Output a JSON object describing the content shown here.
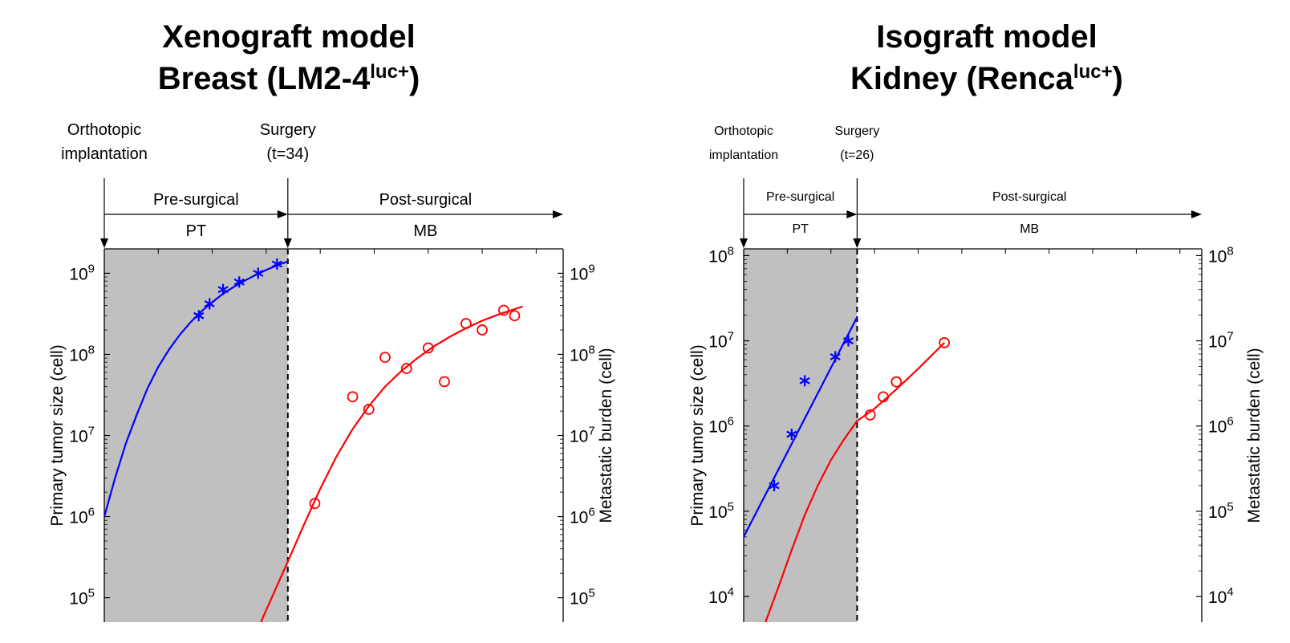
{
  "chart_data": [
    {
      "type": "scatter",
      "title_line1": "Xenograft model",
      "title_line2_base": "Breast (LM2-4",
      "title_line2_sup": "luc+",
      "title_line2_end": ")",
      "ylabel_left": "Primary tumor size (cell)",
      "ylabel_right": "Metastatic burden (cell)",
      "yscale": "log",
      "ylim": [
        50000,
        2000000000
      ],
      "xlim": [
        0,
        85
      ],
      "surgery_time": 34,
      "y_ticks": [
        {
          "exp": 5,
          "label": "10",
          "sup": "5"
        },
        {
          "exp": 6,
          "label": "10",
          "sup": "6"
        },
        {
          "exp": 7,
          "label": "10",
          "sup": "7"
        },
        {
          "exp": 8,
          "label": "10",
          "sup": "8"
        },
        {
          "exp": 9,
          "label": "10",
          "sup": "9"
        }
      ],
      "x_minor_ticks": [
        10,
        20,
        30,
        40,
        50,
        60,
        70,
        80
      ],
      "annotations": {
        "implant_line1": "Orthotopic",
        "implant_line2": "implantation",
        "surgery_line1": "Surgery",
        "surgery_line2": "(t=34)",
        "pre": "Pre-surgical",
        "post": "Post-surgical",
        "pt": "PT",
        "mb": "MB"
      },
      "series": [
        {
          "marker": "asterisk",
          "color": "#0000ff",
          "points": [
            [
              17.5,
              300000000
            ],
            [
              19.5,
              420000000
            ],
            [
              22,
              630000000
            ],
            [
              25,
              780000000
            ],
            [
              28.5,
              1000000000
            ],
            [
              32,
              1300000000
            ]
          ]
        },
        {
          "marker": "circle",
          "color": "#ff0000",
          "points": [
            [
              39,
              1450000
            ],
            [
              46,
              30000000
            ],
            [
              49,
              21000000
            ],
            [
              52,
              92000000
            ],
            [
              56,
              67000000
            ],
            [
              60,
              120000000
            ],
            [
              63,
              46000000
            ],
            [
              67,
              240000000
            ],
            [
              70,
              200000000
            ],
            [
              74,
              350000000
            ],
            [
              76,
              300000000
            ]
          ]
        }
      ],
      "fits": [
        {
          "color": "#0000ff",
          "points": [
            [
              0,
              1000000
            ],
            [
              2,
              3000000
            ],
            [
              4,
              8000000
            ],
            [
              6,
              18000000
            ],
            [
              8,
              38000000
            ],
            [
              10,
              70000000
            ],
            [
              12,
              115000000
            ],
            [
              14,
              175000000
            ],
            [
              16,
              250000000
            ],
            [
              18,
              340000000
            ],
            [
              20,
              440000000
            ],
            [
              22,
              560000000
            ],
            [
              24,
              680000000
            ],
            [
              26,
              810000000
            ],
            [
              28,
              950000000
            ],
            [
              30,
              1100000000
            ],
            [
              32,
              1250000000
            ],
            [
              34,
              1400000000
            ]
          ]
        },
        {
          "color": "#ff0000",
          "points": [
            [
              29,
              50000
            ],
            [
              32,
              140000
            ],
            [
              34,
              280000
            ],
            [
              37,
              800000
            ],
            [
              40,
              2200000
            ],
            [
              43,
              5500000
            ],
            [
              46,
              12000000
            ],
            [
              49,
              23000000
            ],
            [
              52,
              40000000
            ],
            [
              55,
              62000000
            ],
            [
              58,
              90000000
            ],
            [
              61,
              125000000
            ],
            [
              64,
              165000000
            ],
            [
              67,
              210000000
            ],
            [
              70,
              260000000
            ],
            [
              73,
              310000000
            ],
            [
              76,
              360000000
            ],
            [
              77.5,
              390000000
            ]
          ]
        }
      ],
      "colors": {
        "shade": "#c0c0c0",
        "axis": "#000000"
      }
    },
    {
      "type": "scatter",
      "title_line1": "Isograft model",
      "title_line2_base": "Kidney (Renca",
      "title_line2_sup": "luc+",
      "title_line2_end": ")",
      "ylabel_left": "Primary tumor size (cell)",
      "ylabel_right": "Metastatic burden (cell)",
      "yscale": "log",
      "ylim": [
        5000,
        120000000
      ],
      "xlim": [
        0,
        105
      ],
      "surgery_time": 26,
      "y_ticks": [
        {
          "exp": 4,
          "label": "10",
          "sup": "4"
        },
        {
          "exp": 5,
          "label": "10",
          "sup": "5"
        },
        {
          "exp": 6,
          "label": "10",
          "sup": "6"
        },
        {
          "exp": 7,
          "label": "10",
          "sup": "7"
        },
        {
          "exp": 8,
          "label": "10",
          "sup": "8"
        }
      ],
      "x_minor_ticks": [
        10,
        20,
        30,
        40,
        50,
        60,
        70,
        80,
        90,
        100
      ],
      "annotations": {
        "implant_line1": "Orthotopic",
        "implant_line2": "implantation",
        "surgery_line1": "Surgery",
        "surgery_line2": "(t=26)",
        "pre": "Pre-surgical",
        "post": "Post-surgical",
        "pt": "PT",
        "mb": "MB"
      },
      "series": [
        {
          "marker": "asterisk",
          "color": "#0000ff",
          "points": [
            [
              7,
              200000
            ],
            [
              11,
              800000
            ],
            [
              14,
              3400000
            ],
            [
              21,
              6500000
            ],
            [
              24,
              10000000
            ]
          ]
        },
        {
          "marker": "circle",
          "color": "#ff0000",
          "points": [
            [
              29,
              1350000
            ],
            [
              32,
              2200000
            ],
            [
              35,
              3300000
            ],
            [
              46,
              9500000
            ]
          ]
        }
      ],
      "fits": [
        {
          "color": "#0000ff",
          "points": [
            [
              0,
              50000
            ],
            [
              26,
              19000000
            ]
          ]
        },
        {
          "color": "#ff0000",
          "points": [
            [
              5,
              5000
            ],
            [
              8,
              13000
            ],
            [
              11,
              35000
            ],
            [
              14,
              90000
            ],
            [
              17,
              200000
            ],
            [
              20,
              400000
            ],
            [
              23,
              700000
            ],
            [
              26,
              1150000
            ],
            [
              30,
              1600000
            ],
            [
              35,
              2700000
            ],
            [
              40,
              4700000
            ],
            [
              46,
              9500000
            ]
          ]
        }
      ],
      "colors": {
        "shade": "#c0c0c0",
        "axis": "#000000"
      }
    }
  ]
}
